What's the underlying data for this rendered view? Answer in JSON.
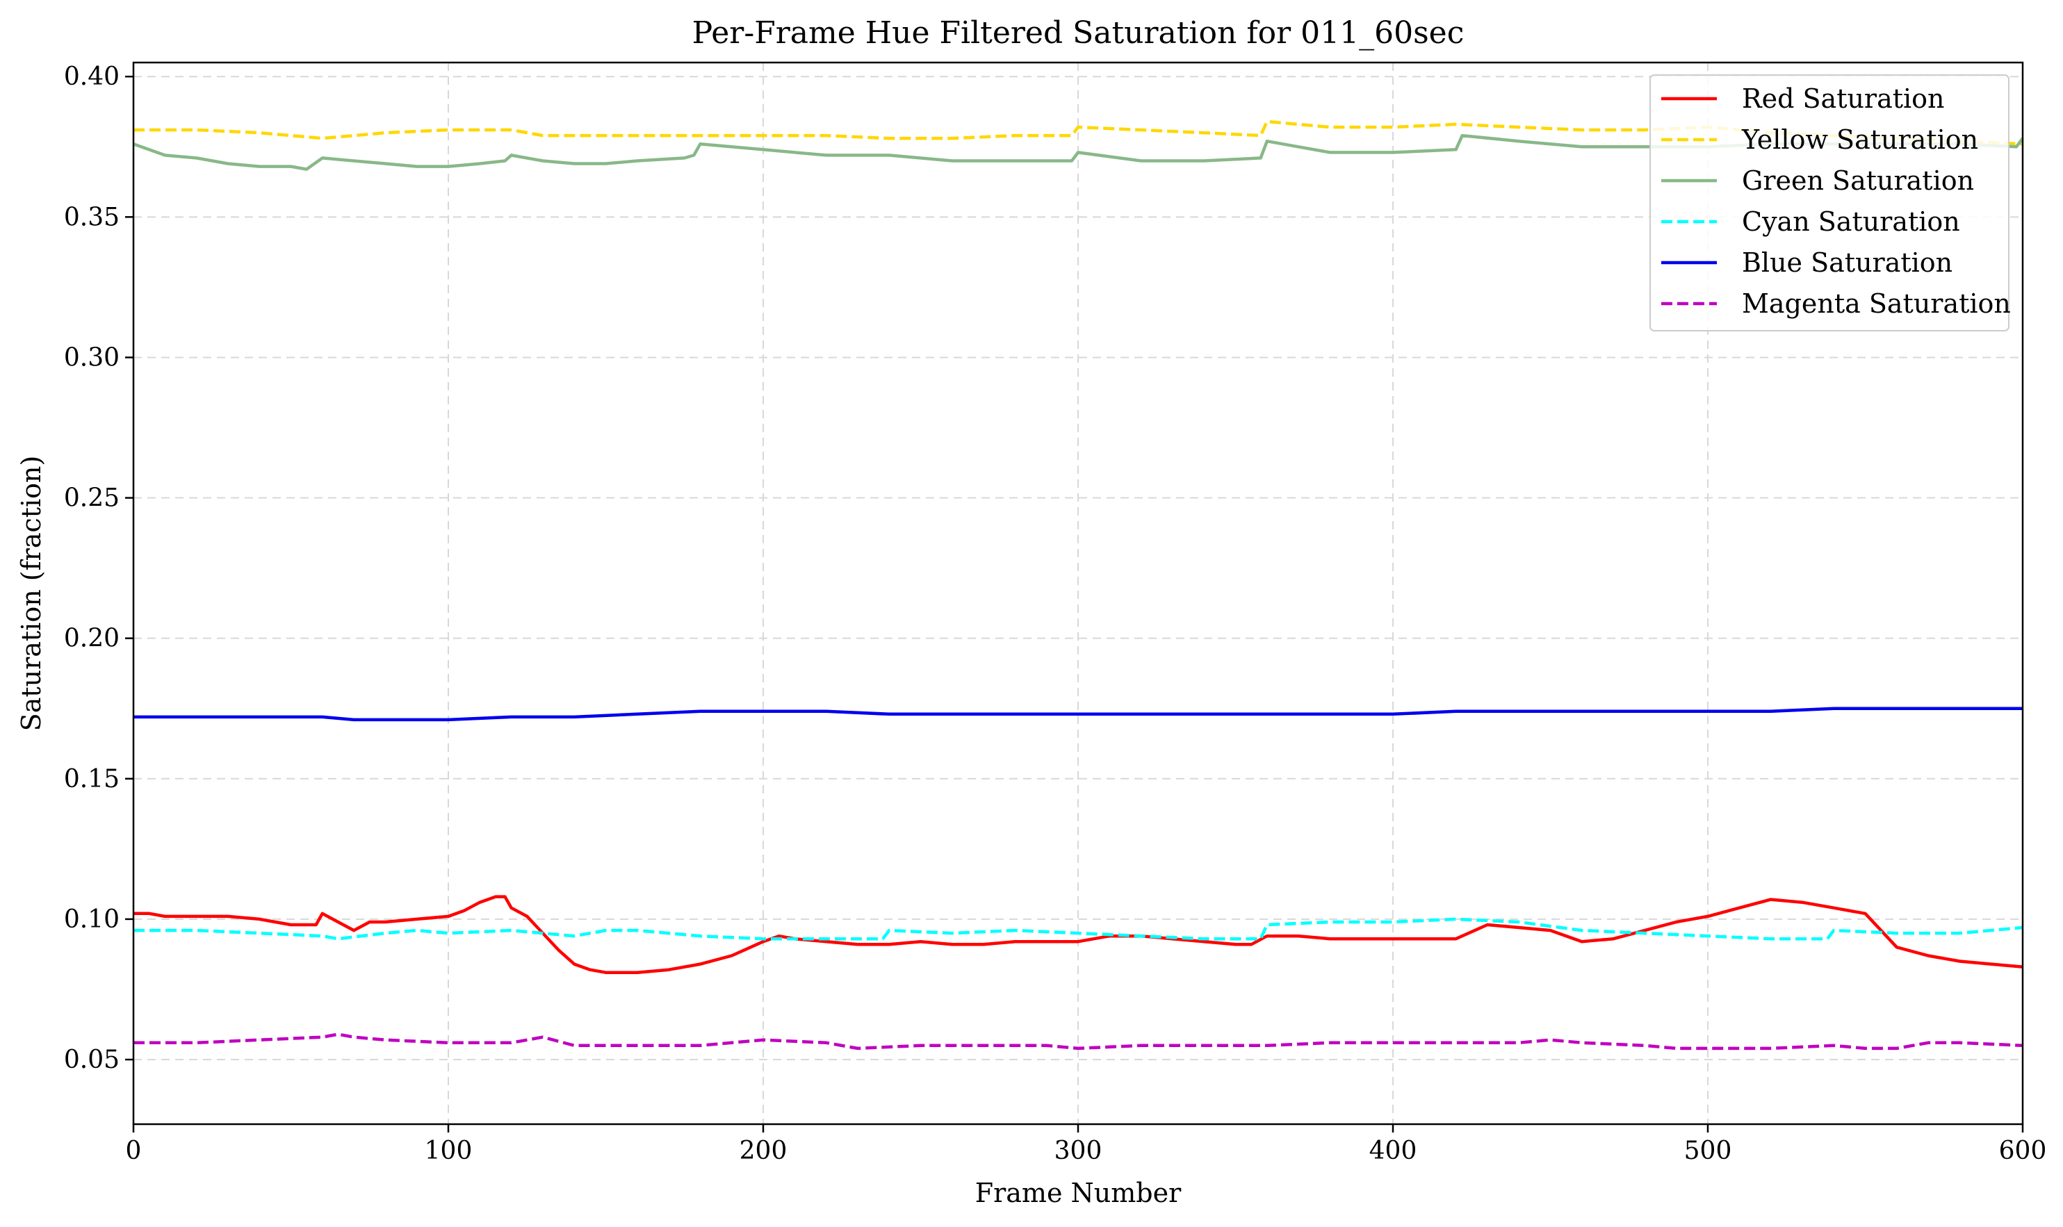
{
  "chart_data": {
    "type": "line",
    "title": "Per-Frame Hue Filtered Saturation for 011_60sec",
    "xlabel": "Frame Number",
    "ylabel": "Saturation (fraction)",
    "xlim": [
      0,
      600
    ],
    "ylim": [
      0.027,
      0.405
    ],
    "xticks": [
      0,
      100,
      200,
      300,
      400,
      500,
      600
    ],
    "xtick_labels": [
      "0",
      "100",
      "200",
      "300",
      "400",
      "500",
      "600"
    ],
    "yticks": [
      0.05,
      0.1,
      0.15,
      0.2,
      0.25,
      0.3,
      0.35,
      0.4
    ],
    "ytick_labels": [
      "0.05",
      "0.10",
      "0.15",
      "0.20",
      "0.25",
      "0.30",
      "0.35",
      "0.40"
    ],
    "grid": true,
    "legend_position": "top-right",
    "series": [
      {
        "name": "Red Saturation",
        "color": "#ff0000",
        "dash": "solid",
        "x": [
          0,
          5,
          10,
          20,
          30,
          40,
          50,
          55,
          58,
          60,
          65,
          70,
          75,
          80,
          90,
          100,
          105,
          110,
          115,
          118,
          120,
          125,
          130,
          135,
          140,
          145,
          150,
          160,
          170,
          180,
          190,
          200,
          205,
          210,
          220,
          230,
          240,
          250,
          260,
          270,
          280,
          290,
          300,
          310,
          320,
          330,
          340,
          350,
          355,
          360,
          370,
          380,
          390,
          400,
          410,
          420,
          430,
          440,
          450,
          460,
          470,
          480,
          490,
          500,
          510,
          520,
          530,
          540,
          550,
          560,
          570,
          580,
          590,
          600
        ],
        "y": [
          0.102,
          0.102,
          0.101,
          0.101,
          0.101,
          0.1,
          0.098,
          0.098,
          0.098,
          0.102,
          0.099,
          0.096,
          0.099,
          0.099,
          0.1,
          0.101,
          0.103,
          0.106,
          0.108,
          0.108,
          0.104,
          0.101,
          0.095,
          0.089,
          0.084,
          0.082,
          0.081,
          0.081,
          0.082,
          0.084,
          0.087,
          0.092,
          0.094,
          0.093,
          0.092,
          0.091,
          0.091,
          0.092,
          0.091,
          0.091,
          0.092,
          0.092,
          0.092,
          0.094,
          0.094,
          0.093,
          0.092,
          0.091,
          0.091,
          0.094,
          0.094,
          0.093,
          0.093,
          0.093,
          0.093,
          0.093,
          0.098,
          0.097,
          0.096,
          0.092,
          0.093,
          0.096,
          0.099,
          0.101,
          0.104,
          0.107,
          0.106,
          0.104,
          0.102,
          0.09,
          0.087,
          0.085,
          0.084,
          0.083
        ]
      },
      {
        "name": "Yellow Saturation",
        "color": "#ffd700",
        "dash": "dashed",
        "x": [
          0,
          20,
          40,
          60,
          80,
          100,
          120,
          130,
          150,
          180,
          200,
          220,
          240,
          260,
          280,
          298,
          300,
          320,
          340,
          358,
          360,
          380,
          400,
          420,
          440,
          460,
          480,
          500,
          520,
          540,
          560,
          580,
          600
        ],
        "y": [
          0.381,
          0.381,
          0.38,
          0.378,
          0.38,
          0.381,
          0.381,
          0.379,
          0.379,
          0.379,
          0.379,
          0.379,
          0.378,
          0.378,
          0.379,
          0.379,
          0.382,
          0.381,
          0.38,
          0.379,
          0.384,
          0.382,
          0.382,
          0.383,
          0.382,
          0.381,
          0.381,
          0.382,
          0.38,
          0.379,
          0.378,
          0.377,
          0.376
        ]
      },
      {
        "name": "Green Saturation",
        "color": "#88b888",
        "dash": "solid",
        "x": [
          0,
          10,
          20,
          30,
          40,
          50,
          55,
          60,
          70,
          80,
          90,
          100,
          110,
          118,
          120,
          130,
          140,
          150,
          160,
          175,
          178,
          180,
          190,
          200,
          220,
          240,
          260,
          280,
          298,
          300,
          320,
          340,
          358,
          360,
          370,
          380,
          400,
          420,
          422,
          440,
          460,
          480,
          500,
          520,
          540,
          560,
          580,
          598,
          600
        ],
        "y": [
          0.376,
          0.372,
          0.371,
          0.369,
          0.368,
          0.368,
          0.367,
          0.371,
          0.37,
          0.369,
          0.368,
          0.368,
          0.369,
          0.37,
          0.372,
          0.37,
          0.369,
          0.369,
          0.37,
          0.371,
          0.372,
          0.376,
          0.375,
          0.374,
          0.372,
          0.372,
          0.37,
          0.37,
          0.37,
          0.373,
          0.37,
          0.37,
          0.371,
          0.377,
          0.375,
          0.373,
          0.373,
          0.374,
          0.379,
          0.377,
          0.375,
          0.375,
          0.375,
          0.376,
          0.376,
          0.376,
          0.376,
          0.375,
          0.378
        ]
      },
      {
        "name": "Cyan Saturation",
        "color": "#00ffff",
        "dash": "dashed",
        "x": [
          0,
          10,
          20,
          40,
          60,
          65,
          80,
          90,
          100,
          120,
          140,
          150,
          160,
          180,
          200,
          220,
          238,
          240,
          260,
          280,
          300,
          320,
          340,
          358,
          360,
          380,
          400,
          420,
          440,
          460,
          480,
          500,
          520,
          538,
          540,
          560,
          580,
          600
        ],
        "y": [
          0.096,
          0.096,
          0.096,
          0.095,
          0.094,
          0.093,
          0.095,
          0.096,
          0.095,
          0.096,
          0.094,
          0.096,
          0.096,
          0.094,
          0.093,
          0.093,
          0.093,
          0.096,
          0.095,
          0.096,
          0.095,
          0.094,
          0.093,
          0.093,
          0.098,
          0.099,
          0.099,
          0.1,
          0.099,
          0.096,
          0.095,
          0.094,
          0.093,
          0.093,
          0.096,
          0.095,
          0.095,
          0.097
        ]
      },
      {
        "name": "Blue Saturation",
        "color": "#0000ee",
        "dash": "solid",
        "x": [
          0,
          20,
          40,
          60,
          70,
          80,
          100,
          120,
          140,
          160,
          180,
          200,
          220,
          240,
          260,
          280,
          300,
          320,
          340,
          360,
          380,
          400,
          420,
          440,
          460,
          480,
          500,
          520,
          540,
          560,
          580,
          600
        ],
        "y": [
          0.172,
          0.172,
          0.172,
          0.172,
          0.171,
          0.171,
          0.171,
          0.172,
          0.172,
          0.173,
          0.174,
          0.174,
          0.174,
          0.173,
          0.173,
          0.173,
          0.173,
          0.173,
          0.173,
          0.173,
          0.173,
          0.173,
          0.174,
          0.174,
          0.174,
          0.174,
          0.174,
          0.174,
          0.175,
          0.175,
          0.175,
          0.175
        ]
      },
      {
        "name": "Magenta Saturation",
        "color": "#c000c0",
        "dash": "dashed",
        "x": [
          0,
          20,
          40,
          60,
          65,
          70,
          80,
          100,
          120,
          130,
          140,
          160,
          180,
          200,
          220,
          230,
          250,
          270,
          290,
          300,
          320,
          340,
          360,
          380,
          400,
          420,
          440,
          450,
          460,
          480,
          490,
          500,
          520,
          540,
          550,
          560,
          570,
          580,
          600
        ],
        "y": [
          0.056,
          0.056,
          0.057,
          0.058,
          0.059,
          0.058,
          0.057,
          0.056,
          0.056,
          0.058,
          0.055,
          0.055,
          0.055,
          0.057,
          0.056,
          0.054,
          0.055,
          0.055,
          0.055,
          0.054,
          0.055,
          0.055,
          0.055,
          0.056,
          0.056,
          0.056,
          0.056,
          0.057,
          0.056,
          0.055,
          0.054,
          0.054,
          0.054,
          0.055,
          0.054,
          0.054,
          0.056,
          0.056,
          0.055
        ]
      }
    ]
  }
}
